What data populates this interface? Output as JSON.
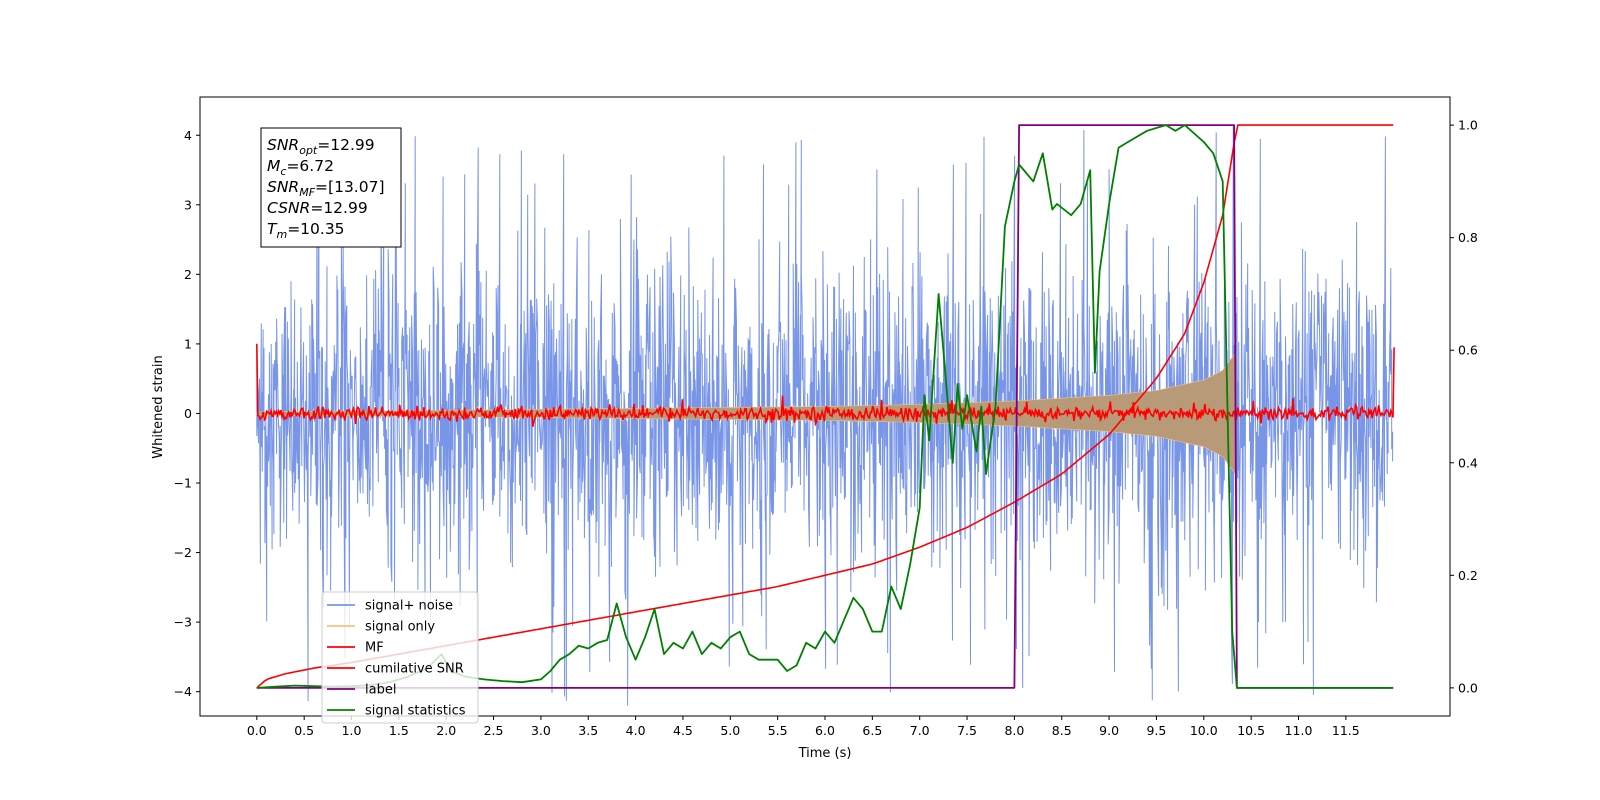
{
  "chart_data": {
    "type": "line",
    "xlabel": "Time (s)",
    "ylabel": "Whitened strain",
    "y2label": "",
    "xlim": [
      -0.6,
      12.6
    ],
    "ylim": [
      -4.35,
      4.55
    ],
    "y2lim": [
      -0.05,
      1.05
    ],
    "x_ticks": [
      0.0,
      0.5,
      1.0,
      1.5,
      2.0,
      2.5,
      3.0,
      3.5,
      4.0,
      4.5,
      5.0,
      5.5,
      6.0,
      6.5,
      7.0,
      7.5,
      8.0,
      8.5,
      9.0,
      9.5,
      10.0,
      10.5,
      11.0,
      11.5
    ],
    "x_tick_labels": [
      "0.0",
      "0.5",
      "1.0",
      "1.5",
      "2.0",
      "2.5",
      "3.0",
      "3.5",
      "4.0",
      "4.5",
      "5.0",
      "5.5",
      "6.0",
      "6.5",
      "7.0",
      "7.5",
      "8.0",
      "8.5",
      "9.0",
      "9.5",
      "10.0",
      "10.5",
      "11.0",
      "11.5"
    ],
    "y_ticks": [
      -4,
      -3,
      -2,
      -1,
      0,
      1,
      2,
      3,
      4
    ],
    "y_tick_labels": [
      "−4",
      "−3",
      "−2",
      "−1",
      "0",
      "1",
      "2",
      "3",
      "4"
    ],
    "y2_ticks": [
      0.0,
      0.2,
      0.4,
      0.6,
      0.8,
      1.0
    ],
    "y2_tick_labels": [
      "0.0",
      "0.2",
      "0.4",
      "0.6",
      "0.8",
      "1.0"
    ],
    "grid": false,
    "legend_position": "lower-left",
    "annotation_box": {
      "position": "top-left",
      "lines": [
        {
          "sym": "SNR",
          "sub": "opt",
          "val": "=12.99"
        },
        {
          "sym": "M",
          "sub": "c",
          "val": "=6.72"
        },
        {
          "sym": "SNR",
          "sub": "MF",
          "val": "=[13.07]"
        },
        {
          "sym": "CSNR",
          "sub": "",
          "val": "=12.99"
        },
        {
          "sym": "T",
          "sub": "m",
          "val": "=10.35"
        }
      ]
    },
    "series": [
      {
        "name": "signal+ noise",
        "axis": "left",
        "color": "#7895e8",
        "style": "dense noise, std ≈ 1.1, peaks ≈ ±4.2",
        "envelope_x": [
          0.0,
          12.0
        ],
        "envelope_y": [
          -3.2,
          3.2
        ]
      },
      {
        "name": "signal only",
        "axis": "left",
        "color": "#f4c27b",
        "style": "chirp envelope growing until merger",
        "x": [
          0.0,
          6.0,
          7.0,
          8.0,
          9.0,
          9.5,
          10.0,
          10.2,
          10.35,
          10.36
        ],
        "amp": [
          0.02,
          0.1,
          0.13,
          0.18,
          0.26,
          0.33,
          0.48,
          0.62,
          0.9,
          0.0
        ]
      },
      {
        "name": "MF",
        "axis": "left",
        "color": "#ff0000",
        "style": "noise around 0, amplitude ≈ 0.1",
        "x": [
          0.0,
          0.01,
          12.0,
          12.01
        ],
        "y": [
          1.0,
          0.0,
          0.0,
          0.95
        ]
      },
      {
        "name": "cumilative SNR",
        "axis": "right",
        "color": "#ff0000",
        "x": [
          0.0,
          0.1,
          0.3,
          0.6,
          1.0,
          1.5,
          2.0,
          2.5,
          3.0,
          3.5,
          4.0,
          4.5,
          5.0,
          5.5,
          6.0,
          6.5,
          7.0,
          7.5,
          8.0,
          8.5,
          9.0,
          9.5,
          9.8,
          10.0,
          10.2,
          10.35,
          11.0,
          12.0
        ],
        "y": [
          0.0,
          0.015,
          0.025,
          0.035,
          0.045,
          0.06,
          0.075,
          0.09,
          0.105,
          0.12,
          0.135,
          0.15,
          0.165,
          0.18,
          0.2,
          0.22,
          0.25,
          0.285,
          0.33,
          0.38,
          0.45,
          0.55,
          0.63,
          0.72,
          0.84,
          1.0,
          1.0,
          1.0
        ]
      },
      {
        "name": "label",
        "axis": "right",
        "color": "#800080",
        "x": [
          0.0,
          8.0,
          8.05,
          10.32,
          10.35,
          12.0
        ],
        "y": [
          0.0,
          0.0,
          1.0,
          1.0,
          0.0,
          0.0
        ]
      },
      {
        "name": "signal statistics",
        "axis": "right",
        "color": "#008000",
        "x": [
          0.0,
          0.2,
          0.4,
          0.6,
          0.8,
          1.0,
          1.2,
          1.4,
          1.6,
          1.8,
          1.95,
          2.05,
          2.2,
          2.4,
          2.6,
          2.8,
          3.0,
          3.1,
          3.2,
          3.3,
          3.4,
          3.5,
          3.6,
          3.7,
          3.8,
          3.9,
          4.0,
          4.1,
          4.2,
          4.3,
          4.4,
          4.5,
          4.6,
          4.7,
          4.8,
          4.9,
          5.0,
          5.1,
          5.2,
          5.3,
          5.4,
          5.5,
          5.6,
          5.7,
          5.8,
          5.9,
          6.0,
          6.1,
          6.2,
          6.3,
          6.4,
          6.5,
          6.6,
          6.7,
          6.8,
          6.9,
          7.0,
          7.05,
          7.1,
          7.2,
          7.3,
          7.35,
          7.4,
          7.45,
          7.5,
          7.6,
          7.65,
          7.7,
          7.8,
          7.9,
          8.0,
          8.05,
          8.2,
          8.3,
          8.4,
          8.45,
          8.6,
          8.7,
          8.8,
          8.85,
          8.9,
          9.0,
          9.1,
          9.2,
          9.4,
          9.6,
          9.7,
          9.8,
          10.0,
          10.1,
          10.2,
          10.3,
          10.35,
          12.0
        ],
        "y": [
          0.0,
          0.002,
          0.004,
          0.003,
          0.002,
          0.003,
          0.005,
          0.01,
          0.02,
          0.035,
          0.06,
          0.03,
          0.02,
          0.015,
          0.012,
          0.01,
          0.015,
          0.03,
          0.05,
          0.06,
          0.075,
          0.07,
          0.08,
          0.085,
          0.15,
          0.09,
          0.05,
          0.09,
          0.14,
          0.06,
          0.08,
          0.07,
          0.1,
          0.06,
          0.08,
          0.07,
          0.09,
          0.1,
          0.06,
          0.05,
          0.05,
          0.05,
          0.03,
          0.04,
          0.08,
          0.07,
          0.1,
          0.08,
          0.12,
          0.16,
          0.14,
          0.1,
          0.1,
          0.18,
          0.14,
          0.22,
          0.32,
          0.52,
          0.44,
          0.7,
          0.5,
          0.4,
          0.54,
          0.46,
          0.52,
          0.42,
          0.5,
          0.38,
          0.5,
          0.82,
          0.9,
          0.93,
          0.9,
          0.95,
          0.85,
          0.86,
          0.84,
          0.86,
          0.92,
          0.56,
          0.74,
          0.86,
          0.96,
          0.97,
          0.99,
          1.0,
          0.99,
          1.0,
          0.97,
          0.95,
          0.9,
          0.1,
          0.0,
          0.0
        ]
      }
    ]
  }
}
